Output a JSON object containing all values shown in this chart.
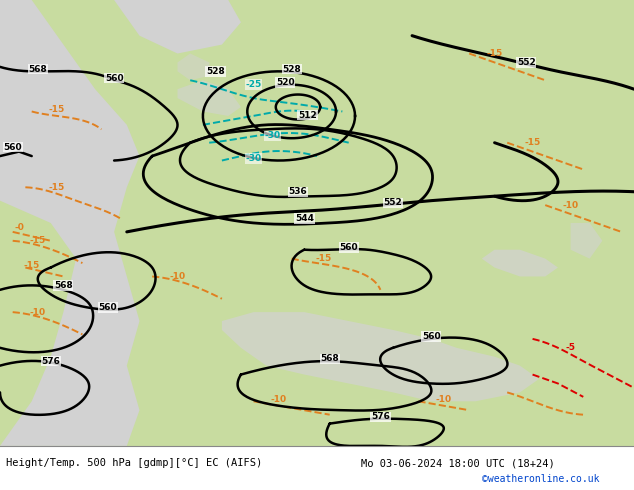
{
  "title_left": "Height/Temp. 500 hPa [gdmp][°C] EC (AIFS)",
  "title_right": "Mo 03-06-2024 18:00 UTC (18+24)",
  "credit": "©weatheronline.co.uk",
  "fig_width": 6.34,
  "fig_height": 4.9,
  "dpi": 100,
  "bg_gray": "#c8c8c8",
  "land_green": "#c8dca0",
  "land_gray": "#d2d2d2",
  "sea_gray": "#c0c0c0",
  "black": "#000000",
  "orange": "#e08020",
  "cyan": "#00aaaa",
  "red": "#dd0000",
  "title_fontsize": 7.5,
  "credit_fontsize": 7,
  "label_fs": 6.5
}
